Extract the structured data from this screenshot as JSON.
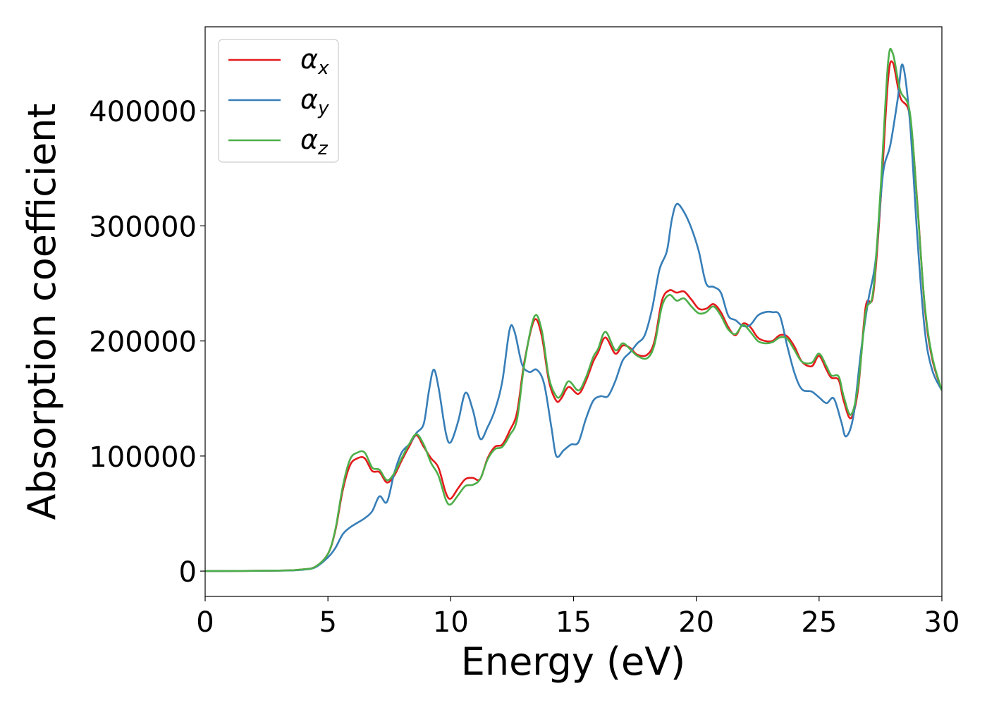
{
  "chart_data": {
    "type": "line",
    "title": "",
    "xlabel": "Energy (eV)",
    "ylabel": "Absorption coefficient",
    "xlim": [
      0,
      30
    ],
    "ylim": [
      -22000,
      473000
    ],
    "xticks": [
      0,
      5,
      10,
      15,
      20,
      25,
      30
    ],
    "yticks": [
      0,
      100000,
      200000,
      300000,
      400000
    ],
    "grid": false,
    "legend_position": "upper left",
    "colors": {
      "alpha_x": "#e41a1c",
      "alpha_y": "#377eb8",
      "alpha_z": "#4daf4a"
    },
    "series": [
      {
        "name": "α_x",
        "symbol": "α",
        "subscript": "x",
        "color": "#e41a1c",
        "points": [
          [
            0,
            0
          ],
          [
            3,
            500
          ],
          [
            4,
            1500
          ],
          [
            4.5,
            4000
          ],
          [
            5,
            15000
          ],
          [
            5.3,
            35000
          ],
          [
            5.6,
            70000
          ],
          [
            5.9,
            92000
          ],
          [
            6.2,
            98000
          ],
          [
            6.5,
            98000
          ],
          [
            6.8,
            87000
          ],
          [
            7.1,
            86000
          ],
          [
            7.4,
            77000
          ],
          [
            7.7,
            83000
          ],
          [
            8.0,
            96000
          ],
          [
            8.3,
            108000
          ],
          [
            8.6,
            118000
          ],
          [
            8.9,
            108000
          ],
          [
            9.2,
            98000
          ],
          [
            9.5,
            90000
          ],
          [
            9.8,
            68000
          ],
          [
            10.0,
            63000
          ],
          [
            10.3,
            72000
          ],
          [
            10.6,
            80000
          ],
          [
            10.9,
            81000
          ],
          [
            11.2,
            80000
          ],
          [
            11.5,
            98000
          ],
          [
            11.8,
            108000
          ],
          [
            12.1,
            110000
          ],
          [
            12.4,
            122000
          ],
          [
            12.7,
            138000
          ],
          [
            13.0,
            182000
          ],
          [
            13.4,
            218000
          ],
          [
            13.7,
            205000
          ],
          [
            14.0,
            165000
          ],
          [
            14.3,
            148000
          ],
          [
            14.5,
            150000
          ],
          [
            14.8,
            160000
          ],
          [
            15.2,
            154000
          ],
          [
            15.5,
            165000
          ],
          [
            15.8,
            182000
          ],
          [
            16.0,
            190000
          ],
          [
            16.3,
            203000
          ],
          [
            16.7,
            189000
          ],
          [
            17.0,
            196000
          ],
          [
            17.3,
            194000
          ],
          [
            17.6,
            188000
          ],
          [
            18.0,
            188000
          ],
          [
            18.3,
            200000
          ],
          [
            18.6,
            235000
          ],
          [
            18.9,
            244000
          ],
          [
            19.2,
            242000
          ],
          [
            19.5,
            243000
          ],
          [
            19.8,
            236000
          ],
          [
            20.1,
            228000
          ],
          [
            20.4,
            228000
          ],
          [
            20.7,
            232000
          ],
          [
            21.0,
            225000
          ],
          [
            21.3,
            212000
          ],
          [
            21.6,
            205000
          ],
          [
            21.9,
            215000
          ],
          [
            22.2,
            212000
          ],
          [
            22.5,
            203000
          ],
          [
            22.8,
            200000
          ],
          [
            23.1,
            200000
          ],
          [
            23.4,
            205000
          ],
          [
            23.7,
            204000
          ],
          [
            24.0,
            195000
          ],
          [
            24.3,
            182000
          ],
          [
            24.7,
            178000
          ],
          [
            25.0,
            187000
          ],
          [
            25.3,
            175000
          ],
          [
            25.5,
            168000
          ],
          [
            25.8,
            166000
          ],
          [
            26.0,
            148000
          ],
          [
            26.3,
            133000
          ],
          [
            26.6,
            160000
          ],
          [
            26.9,
            230000
          ],
          [
            27.2,
            240000
          ],
          [
            27.5,
            320000
          ],
          [
            27.8,
            425000
          ],
          [
            28.0,
            442000
          ],
          [
            28.3,
            412000
          ],
          [
            28.7,
            395000
          ],
          [
            29.0,
            320000
          ],
          [
            29.3,
            230000
          ],
          [
            29.6,
            185000
          ],
          [
            30,
            157000
          ]
        ]
      },
      {
        "name": "α_y",
        "symbol": "α",
        "subscript": "y",
        "color": "#377eb8",
        "points": [
          [
            0,
            0
          ],
          [
            3,
            400
          ],
          [
            4,
            1200
          ],
          [
            4.5,
            3500
          ],
          [
            5,
            12000
          ],
          [
            5.3,
            20000
          ],
          [
            5.6,
            32000
          ],
          [
            5.9,
            38000
          ],
          [
            6.2,
            42000
          ],
          [
            6.5,
            46000
          ],
          [
            6.8,
            52000
          ],
          [
            7.1,
            65000
          ],
          [
            7.4,
            60000
          ],
          [
            7.7,
            85000
          ],
          [
            8.0,
            103000
          ],
          [
            8.3,
            110000
          ],
          [
            8.6,
            120000
          ],
          [
            8.9,
            128000
          ],
          [
            9.1,
            155000
          ],
          [
            9.3,
            175000
          ],
          [
            9.5,
            160000
          ],
          [
            9.8,
            120000
          ],
          [
            10.0,
            112000
          ],
          [
            10.3,
            130000
          ],
          [
            10.6,
            155000
          ],
          [
            10.9,
            140000
          ],
          [
            11.2,
            115000
          ],
          [
            11.5,
            125000
          ],
          [
            11.8,
            140000
          ],
          [
            12.1,
            165000
          ],
          [
            12.4,
            210000
          ],
          [
            12.6,
            208000
          ],
          [
            12.9,
            180000
          ],
          [
            13.2,
            173000
          ],
          [
            13.5,
            175000
          ],
          [
            13.8,
            163000
          ],
          [
            14.1,
            125000
          ],
          [
            14.3,
            100000
          ],
          [
            14.6,
            105000
          ],
          [
            14.9,
            110000
          ],
          [
            15.2,
            112000
          ],
          [
            15.5,
            132000
          ],
          [
            15.8,
            148000
          ],
          [
            16.1,
            152000
          ],
          [
            16.4,
            152000
          ],
          [
            16.7,
            165000
          ],
          [
            17.0,
            183000
          ],
          [
            17.3,
            190000
          ],
          [
            17.6,
            198000
          ],
          [
            17.9,
            205000
          ],
          [
            18.2,
            228000
          ],
          [
            18.5,
            262000
          ],
          [
            18.8,
            278000
          ],
          [
            19.0,
            305000
          ],
          [
            19.2,
            319000
          ],
          [
            19.5,
            312000
          ],
          [
            19.8,
            298000
          ],
          [
            20.1,
            278000
          ],
          [
            20.4,
            250000
          ],
          [
            20.7,
            247000
          ],
          [
            21.0,
            242000
          ],
          [
            21.3,
            222000
          ],
          [
            21.6,
            218000
          ],
          [
            21.9,
            213000
          ],
          [
            22.2,
            214000
          ],
          [
            22.5,
            222000
          ],
          [
            22.8,
            225000
          ],
          [
            23.1,
            225000
          ],
          [
            23.4,
            222000
          ],
          [
            23.7,
            196000
          ],
          [
            24.0,
            172000
          ],
          [
            24.3,
            158000
          ],
          [
            24.7,
            156000
          ],
          [
            25.0,
            151000
          ],
          [
            25.3,
            146000
          ],
          [
            25.6,
            150000
          ],
          [
            25.9,
            130000
          ],
          [
            26.1,
            117000
          ],
          [
            26.4,
            135000
          ],
          [
            26.7,
            190000
          ],
          [
            27.0,
            235000
          ],
          [
            27.3,
            270000
          ],
          [
            27.6,
            345000
          ],
          [
            27.9,
            370000
          ],
          [
            28.2,
            410000
          ],
          [
            28.4,
            440000
          ],
          [
            28.7,
            390000
          ],
          [
            29.0,
            290000
          ],
          [
            29.3,
            210000
          ],
          [
            29.6,
            175000
          ],
          [
            30,
            157000
          ]
        ]
      },
      {
        "name": "α_z",
        "symbol": "α",
        "subscript": "z",
        "color": "#4daf4a",
        "points": [
          [
            0,
            0
          ],
          [
            3,
            500
          ],
          [
            4,
            1500
          ],
          [
            4.5,
            4000
          ],
          [
            5,
            15000
          ],
          [
            5.3,
            36000
          ],
          [
            5.6,
            73000
          ],
          [
            5.9,
            97000
          ],
          [
            6.2,
            103000
          ],
          [
            6.5,
            103000
          ],
          [
            6.8,
            90000
          ],
          [
            7.1,
            88000
          ],
          [
            7.4,
            79000
          ],
          [
            7.7,
            85000
          ],
          [
            8.0,
            98000
          ],
          [
            8.3,
            110000
          ],
          [
            8.6,
            119000
          ],
          [
            8.9,
            110000
          ],
          [
            9.2,
            94000
          ],
          [
            9.5,
            83000
          ],
          [
            9.8,
            62000
          ],
          [
            10.0,
            58000
          ],
          [
            10.3,
            66000
          ],
          [
            10.6,
            74000
          ],
          [
            10.9,
            75000
          ],
          [
            11.2,
            80000
          ],
          [
            11.5,
            97000
          ],
          [
            11.8,
            106000
          ],
          [
            12.1,
            108000
          ],
          [
            12.4,
            118000
          ],
          [
            12.7,
            132000
          ],
          [
            13.0,
            180000
          ],
          [
            13.4,
            221000
          ],
          [
            13.7,
            210000
          ],
          [
            14.0,
            168000
          ],
          [
            14.3,
            152000
          ],
          [
            14.5,
            153000
          ],
          [
            14.8,
            165000
          ],
          [
            15.2,
            157000
          ],
          [
            15.5,
            168000
          ],
          [
            15.8,
            186000
          ],
          [
            16.0,
            193000
          ],
          [
            16.3,
            208000
          ],
          [
            16.7,
            192000
          ],
          [
            17.0,
            198000
          ],
          [
            17.3,
            193000
          ],
          [
            17.6,
            187000
          ],
          [
            18.0,
            185000
          ],
          [
            18.3,
            197000
          ],
          [
            18.6,
            230000
          ],
          [
            18.9,
            240000
          ],
          [
            19.2,
            235000
          ],
          [
            19.5,
            237000
          ],
          [
            19.8,
            230000
          ],
          [
            20.1,
            224000
          ],
          [
            20.4,
            225000
          ],
          [
            20.7,
            230000
          ],
          [
            21.0,
            222000
          ],
          [
            21.3,
            210000
          ],
          [
            21.6,
            206000
          ],
          [
            21.9,
            214000
          ],
          [
            22.2,
            208000
          ],
          [
            22.5,
            200000
          ],
          [
            22.8,
            198000
          ],
          [
            23.1,
            199000
          ],
          [
            23.4,
            203000
          ],
          [
            23.7,
            202000
          ],
          [
            24.0,
            192000
          ],
          [
            24.3,
            182000
          ],
          [
            24.7,
            181000
          ],
          [
            25.0,
            189000
          ],
          [
            25.3,
            178000
          ],
          [
            25.5,
            170000
          ],
          [
            25.8,
            169000
          ],
          [
            26.0,
            152000
          ],
          [
            26.3,
            136000
          ],
          [
            26.6,
            163000
          ],
          [
            26.9,
            225000
          ],
          [
            27.2,
            243000
          ],
          [
            27.5,
            330000
          ],
          [
            27.8,
            440000
          ],
          [
            28.0,
            450000
          ],
          [
            28.3,
            418000
          ],
          [
            28.7,
            398000
          ],
          [
            29.0,
            318000
          ],
          [
            29.3,
            232000
          ],
          [
            29.6,
            187000
          ],
          [
            30,
            157000
          ]
        ]
      }
    ]
  }
}
